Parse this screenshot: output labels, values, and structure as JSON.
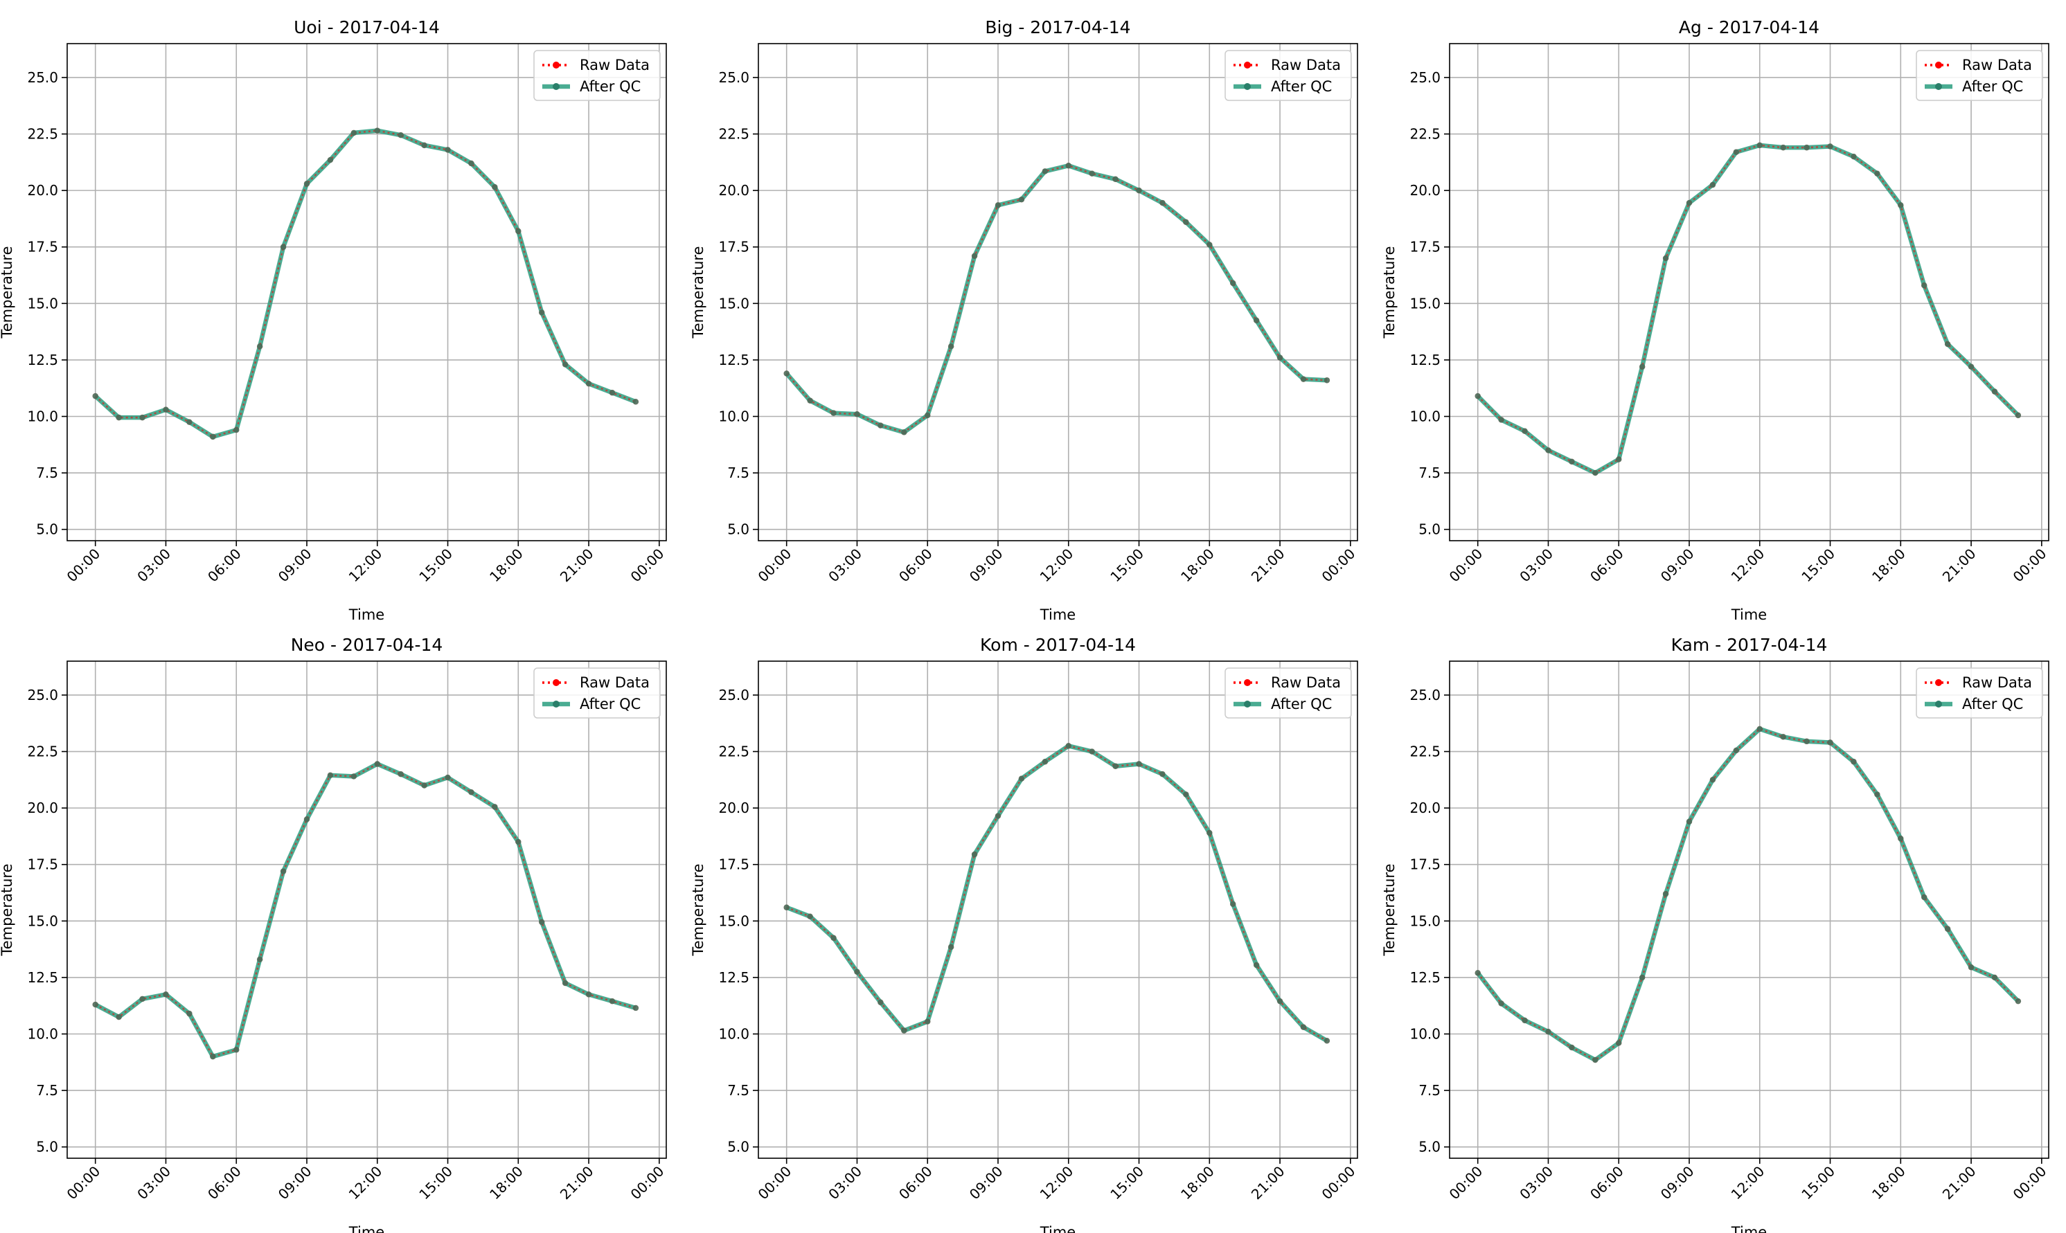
{
  "figure": {
    "xlabel": "Time",
    "ylabel": "Temperature",
    "legend": {
      "raw_label": "Raw Data",
      "qc_label": "After QC"
    },
    "colors": {
      "raw": "#ff0000",
      "qc": "#2a9d7f",
      "qc_marker": "#2a7f6a",
      "grid": "#b0b0b0",
      "axes": "#000000"
    }
  },
  "chart_data": [
    {
      "type": "line",
      "title": "Uoi - 2017-04-14",
      "xlabel": "Time",
      "ylabel": "Temperature",
      "x": [
        "00:00",
        "01:00",
        "02:00",
        "03:00",
        "04:00",
        "05:00",
        "06:00",
        "07:00",
        "08:00",
        "09:00",
        "10:00",
        "11:00",
        "12:00",
        "13:00",
        "14:00",
        "15:00",
        "16:00",
        "17:00",
        "18:00",
        "19:00",
        "20:00",
        "21:00",
        "22:00",
        "23:00"
      ],
      "xticks": [
        "00:00",
        "03:00",
        "06:00",
        "09:00",
        "12:00",
        "15:00",
        "18:00",
        "21:00",
        "00:00"
      ],
      "yticks": [
        "5.0",
        "7.5",
        "10.0",
        "12.5",
        "15.0",
        "17.5",
        "20.0",
        "22.5",
        "25.0"
      ],
      "ylim": [
        4.5,
        26.5
      ],
      "grid": true,
      "legend_position": "top-right",
      "series": [
        {
          "name": "Raw Data",
          "values": [
            10.9,
            9.95,
            9.95,
            10.3,
            9.75,
            9.1,
            9.4,
            13.1,
            17.5,
            20.3,
            21.35,
            22.55,
            22.65,
            22.45,
            22.0,
            21.8,
            21.2,
            20.15,
            18.2,
            14.6,
            12.3,
            11.45,
            11.05,
            10.65
          ]
        },
        {
          "name": "After QC",
          "values": [
            10.9,
            9.95,
            9.95,
            10.3,
            9.75,
            9.1,
            9.4,
            13.1,
            17.5,
            20.3,
            21.35,
            22.55,
            22.65,
            22.45,
            22.0,
            21.8,
            21.2,
            20.15,
            18.2,
            14.6,
            12.3,
            11.45,
            11.05,
            10.65
          ]
        }
      ]
    },
    {
      "type": "line",
      "title": "Big - 2017-04-14",
      "xlabel": "Time",
      "ylabel": "Temperature",
      "x": [
        "00:00",
        "01:00",
        "02:00",
        "03:00",
        "04:00",
        "05:00",
        "06:00",
        "07:00",
        "08:00",
        "09:00",
        "10:00",
        "11:00",
        "12:00",
        "13:00",
        "14:00",
        "15:00",
        "16:00",
        "17:00",
        "18:00",
        "19:00",
        "20:00",
        "21:00",
        "22:00",
        "23:00"
      ],
      "xticks": [
        "00:00",
        "03:00",
        "06:00",
        "09:00",
        "12:00",
        "15:00",
        "18:00",
        "21:00",
        "00:00"
      ],
      "yticks": [
        "5.0",
        "7.5",
        "10.0",
        "12.5",
        "15.0",
        "17.5",
        "20.0",
        "22.5",
        "25.0"
      ],
      "ylim": [
        4.5,
        26.5
      ],
      "grid": true,
      "legend_position": "top-right",
      "series": [
        {
          "name": "Raw Data",
          "values": [
            11.9,
            10.7,
            10.15,
            10.1,
            9.6,
            9.3,
            10.05,
            13.1,
            17.1,
            19.35,
            19.6,
            20.85,
            21.1,
            20.75,
            20.5,
            20.0,
            19.45,
            18.6,
            17.6,
            15.9,
            14.25,
            12.6,
            11.65,
            11.6
          ]
        },
        {
          "name": "After QC",
          "values": [
            11.9,
            10.7,
            10.15,
            10.1,
            9.6,
            9.3,
            10.05,
            13.1,
            17.1,
            19.35,
            19.6,
            20.85,
            21.1,
            20.75,
            20.5,
            20.0,
            19.45,
            18.6,
            17.6,
            15.9,
            14.25,
            12.6,
            11.65,
            11.6
          ]
        }
      ]
    },
    {
      "type": "line",
      "title": "Ag - 2017-04-14",
      "xlabel": "Time",
      "ylabel": "Temperature",
      "x": [
        "00:00",
        "01:00",
        "02:00",
        "03:00",
        "04:00",
        "05:00",
        "06:00",
        "07:00",
        "08:00",
        "09:00",
        "10:00",
        "11:00",
        "12:00",
        "13:00",
        "14:00",
        "15:00",
        "16:00",
        "17:00",
        "18:00",
        "19:00",
        "20:00",
        "21:00",
        "22:00",
        "23:00"
      ],
      "xticks": [
        "00:00",
        "03:00",
        "06:00",
        "09:00",
        "12:00",
        "15:00",
        "18:00",
        "21:00",
        "00:00"
      ],
      "yticks": [
        "5.0",
        "7.5",
        "10.0",
        "12.5",
        "15.0",
        "17.5",
        "20.0",
        "22.5",
        "25.0"
      ],
      "ylim": [
        4.5,
        26.5
      ],
      "grid": true,
      "legend_position": "top-right",
      "series": [
        {
          "name": "Raw Data",
          "values": [
            10.9,
            9.85,
            9.35,
            8.5,
            8.0,
            7.5,
            8.1,
            12.2,
            17.0,
            19.45,
            20.25,
            21.7,
            22.0,
            21.9,
            21.9,
            21.95,
            21.5,
            20.75,
            19.35,
            15.8,
            13.2,
            12.2,
            11.1,
            10.05
          ]
        },
        {
          "name": "After QC",
          "values": [
            10.9,
            9.85,
            9.35,
            8.5,
            8.0,
            7.5,
            8.1,
            12.2,
            17.0,
            19.45,
            20.25,
            21.7,
            22.0,
            21.9,
            21.9,
            21.95,
            21.5,
            20.75,
            19.35,
            15.8,
            13.2,
            12.2,
            11.1,
            10.05
          ]
        }
      ]
    },
    {
      "type": "line",
      "title": "Neo - 2017-04-14",
      "xlabel": "Time",
      "ylabel": "Temperature",
      "x": [
        "00:00",
        "01:00",
        "02:00",
        "03:00",
        "04:00",
        "05:00",
        "06:00",
        "07:00",
        "08:00",
        "09:00",
        "10:00",
        "11:00",
        "12:00",
        "13:00",
        "14:00",
        "15:00",
        "16:00",
        "17:00",
        "18:00",
        "19:00",
        "20:00",
        "21:00",
        "22:00",
        "23:00"
      ],
      "xticks": [
        "00:00",
        "03:00",
        "06:00",
        "09:00",
        "12:00",
        "15:00",
        "18:00",
        "21:00",
        "00:00"
      ],
      "yticks": [
        "5.0",
        "7.5",
        "10.0",
        "12.5",
        "15.0",
        "17.5",
        "20.0",
        "22.5",
        "25.0"
      ],
      "ylim": [
        4.5,
        26.5
      ],
      "grid": true,
      "legend_position": "top-right",
      "series": [
        {
          "name": "Raw Data",
          "values": [
            11.3,
            10.75,
            11.55,
            11.75,
            10.9,
            9.0,
            9.3,
            13.3,
            17.2,
            19.5,
            21.45,
            21.4,
            21.95,
            21.5,
            21.0,
            21.35,
            20.7,
            20.05,
            18.5,
            14.95,
            12.25,
            11.75,
            11.45,
            11.15
          ]
        },
        {
          "name": "After QC",
          "values": [
            11.3,
            10.75,
            11.55,
            11.75,
            10.9,
            9.0,
            9.3,
            13.3,
            17.2,
            19.5,
            21.45,
            21.4,
            21.95,
            21.5,
            21.0,
            21.35,
            20.7,
            20.05,
            18.5,
            14.95,
            12.25,
            11.75,
            11.45,
            11.15
          ]
        }
      ]
    },
    {
      "type": "line",
      "title": "Kom - 2017-04-14",
      "xlabel": "Time",
      "ylabel": "Temperature",
      "x": [
        "00:00",
        "01:00",
        "02:00",
        "03:00",
        "04:00",
        "05:00",
        "06:00",
        "07:00",
        "08:00",
        "09:00",
        "10:00",
        "11:00",
        "12:00",
        "13:00",
        "14:00",
        "15:00",
        "16:00",
        "17:00",
        "18:00",
        "19:00",
        "20:00",
        "21:00",
        "22:00",
        "23:00"
      ],
      "xticks": [
        "00:00",
        "03:00",
        "06:00",
        "09:00",
        "12:00",
        "15:00",
        "18:00",
        "21:00",
        "00:00"
      ],
      "yticks": [
        "5.0",
        "7.5",
        "10.0",
        "12.5",
        "15.0",
        "17.5",
        "20.0",
        "22.5",
        "25.0"
      ],
      "ylim": [
        4.5,
        26.5
      ],
      "grid": true,
      "legend_position": "top-right",
      "series": [
        {
          "name": "Raw Data",
          "values": [
            15.6,
            15.2,
            14.25,
            12.75,
            11.4,
            10.15,
            10.55,
            13.85,
            17.95,
            19.65,
            21.3,
            22.05,
            22.75,
            22.5,
            21.85,
            21.95,
            21.5,
            20.6,
            18.9,
            15.75,
            13.05,
            11.45,
            10.3,
            9.7
          ]
        },
        {
          "name": "After QC",
          "values": [
            15.6,
            15.2,
            14.25,
            12.75,
            11.4,
            10.15,
            10.55,
            13.85,
            17.95,
            19.65,
            21.3,
            22.05,
            22.75,
            22.5,
            21.85,
            21.95,
            21.5,
            20.6,
            18.9,
            15.75,
            13.05,
            11.45,
            10.3,
            9.7
          ]
        }
      ]
    },
    {
      "type": "line",
      "title": "Kam - 2017-04-14",
      "xlabel": "Time",
      "ylabel": "Temperature",
      "x": [
        "00:00",
        "01:00",
        "02:00",
        "03:00",
        "04:00",
        "05:00",
        "06:00",
        "07:00",
        "08:00",
        "09:00",
        "10:00",
        "11:00",
        "12:00",
        "13:00",
        "14:00",
        "15:00",
        "16:00",
        "17:00",
        "18:00",
        "19:00",
        "20:00",
        "21:00",
        "22:00",
        "23:00"
      ],
      "xticks": [
        "00:00",
        "03:00",
        "06:00",
        "09:00",
        "12:00",
        "15:00",
        "18:00",
        "21:00",
        "00:00"
      ],
      "yticks": [
        "5.0",
        "7.5",
        "10.0",
        "12.5",
        "15.0",
        "17.5",
        "20.0",
        "22.5",
        "25.0"
      ],
      "ylim": [
        4.5,
        26.5
      ],
      "grid": true,
      "legend_position": "top-right",
      "series": [
        {
          "name": "Raw Data",
          "values": [
            12.7,
            11.35,
            10.6,
            10.1,
            9.4,
            8.85,
            9.6,
            12.5,
            16.2,
            19.4,
            21.25,
            22.55,
            23.5,
            23.15,
            22.95,
            22.9,
            22.05,
            20.6,
            18.65,
            16.05,
            14.65,
            12.95,
            12.5,
            11.45
          ]
        },
        {
          "name": "After QC",
          "values": [
            12.7,
            11.35,
            10.6,
            10.1,
            9.4,
            8.85,
            9.6,
            12.5,
            16.2,
            19.4,
            21.25,
            22.55,
            23.5,
            23.15,
            22.95,
            22.9,
            22.05,
            20.6,
            18.65,
            16.05,
            14.65,
            12.95,
            12.5,
            11.45
          ]
        }
      ]
    }
  ]
}
